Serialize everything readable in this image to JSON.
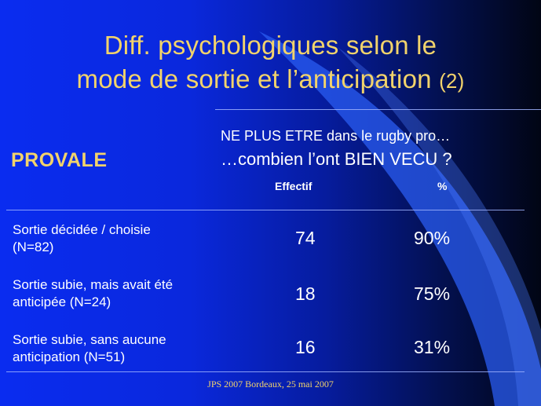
{
  "slide": {
    "title_line1": "Diff. psychologiques selon le",
    "title_line2": "mode de sortie et l’anticipation",
    "title_number": "(2)",
    "label": "PROVALE",
    "question_line1": "NE PLUS ETRE dans le rugby pro…",
    "question_line2": "…combien l’ont BIEN VECU ?",
    "columns": [
      "Effectif",
      "%"
    ],
    "rows": [
      {
        "label_line1": "Sortie décidée / choisie",
        "label_line2": "(N=82)",
        "effectif": "74",
        "percent": "90%"
      },
      {
        "label_line1": "Sortie subie, mais avait été",
        "label_line2": "anticipée (N=24)",
        "effectif": "18",
        "percent": "75%"
      },
      {
        "label_line1": "Sortie subie, sans aucune",
        "label_line2": "anticipation (N=51)",
        "effectif": "16",
        "percent": "31%"
      }
    ],
    "footer": "JPS 2007 Bordeaux, 25 mai 2007"
  },
  "colors": {
    "title": "#f2d36b",
    "text": "#ffffff",
    "background_left": "#0a2cf0",
    "background_right": "#010514",
    "accent_swoosh": "#2a5cf2"
  }
}
